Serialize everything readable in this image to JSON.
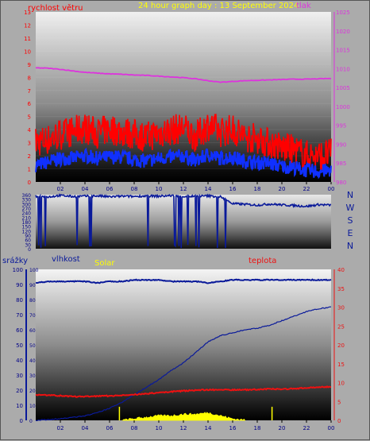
{
  "charts_top_title": "24 hour graph day : 13 September 2024",
  "colors": {
    "wind": "#ff0000",
    "gust_base": "#1030ff",
    "pressure": "#dd33dd",
    "direction": "#0a1a9a",
    "humidity": "#0a1a9a",
    "temperature": "#ee1111",
    "rain": "#0a1a9a",
    "solar": "#ffff00",
    "title": "#ffff00"
  },
  "chart_data": [
    {
      "type": "line",
      "title": "24 hour graph day : 13 September 2024",
      "ylabel_left": "rychlost větru",
      "ylabel_right": "tlak",
      "ylim_left": [
        0,
        13
      ],
      "ylim_right": [
        980,
        1025
      ],
      "yticks_left": [
        "0",
        "1",
        "2",
        "3",
        "4",
        "5",
        "6",
        "7",
        "8",
        "9",
        "10",
        "11",
        "12",
        "13"
      ],
      "yticks_right": [
        "980",
        "985",
        "990",
        "995",
        "1000",
        "1005",
        "1010",
        "1015",
        "1020",
        "1025"
      ],
      "xticks": [
        "02",
        "04",
        "06",
        "08",
        "10",
        "12",
        "14",
        "16",
        "18",
        "20",
        "22",
        "00"
      ],
      "series": [
        {
          "name": "rychlost větru",
          "x": [
            0,
            1,
            2,
            3,
            4,
            5,
            6,
            7,
            8,
            9,
            10,
            11,
            12,
            13,
            14,
            15,
            16,
            17,
            18,
            19,
            20,
            21,
            22,
            23,
            24
          ],
          "values": [
            2.8,
            3.0,
            3.4,
            3.6,
            3.9,
            3.5,
            3.8,
            3.6,
            3.4,
            3.2,
            3.5,
            3.7,
            3.9,
            3.2,
            4.1,
            3.6,
            3.8,
            3.2,
            3.1,
            2.7,
            2.4,
            2.2,
            1.8,
            1.7,
            1.9
          ]
        },
        {
          "name": "",
          "x": [
            0,
            1,
            2,
            3,
            4,
            5,
            6,
            7,
            8,
            9,
            10,
            11,
            12,
            13,
            14,
            15,
            16,
            17,
            18,
            19,
            20,
            21,
            22,
            23,
            24
          ],
          "values": [
            1.3,
            1.5,
            1.8,
            1.8,
            2.0,
            1.8,
            1.9,
            1.9,
            1.7,
            1.6,
            1.8,
            1.9,
            2.0,
            1.6,
            2.1,
            1.8,
            1.9,
            1.6,
            1.5,
            1.4,
            1.2,
            1.1,
            0.9,
            0.8,
            0.9
          ]
        },
        {
          "name": "tlak",
          "x": [
            0,
            1,
            2,
            3,
            4,
            5,
            6,
            7,
            8,
            9,
            10,
            11,
            12,
            13,
            14,
            15,
            16,
            17,
            18,
            19,
            20,
            21,
            22,
            23,
            24
          ],
          "values": [
            1010.2,
            1010.1,
            1009.8,
            1009.4,
            1009.0,
            1008.8,
            1008.6,
            1008.5,
            1008.3,
            1008.2,
            1008.0,
            1007.8,
            1007.6,
            1007.3,
            1006.8,
            1006.4,
            1006.6,
            1006.8,
            1006.9,
            1007.0,
            1007.1,
            1007.2,
            1007.2,
            1007.3,
            1007.4
          ]
        }
      ]
    },
    {
      "type": "line",
      "ylim": [
        0,
        360
      ],
      "yticks": [
        "0",
        "90",
        "180",
        "270",
        "360"
      ],
      "yticks_shown": [
        "0",
        "30",
        "60",
        "90",
        "120",
        "150",
        "180",
        "210",
        "240",
        "270",
        "300",
        "330"
      ],
      "compass_labels": [
        "N",
        "W",
        "S",
        "E",
        "N"
      ],
      "series": [
        {
          "name": "",
          "x": [
            0,
            1,
            2,
            3,
            4,
            5,
            6,
            7,
            8,
            9,
            10,
            11,
            12,
            13,
            14,
            15,
            16,
            17,
            18,
            19,
            20,
            21,
            22,
            23,
            24
          ],
          "values": [
            350,
            345,
            355,
            348,
            350,
            352,
            346,
            350,
            348,
            352,
            350,
            354,
            348,
            350,
            352,
            346,
            300,
            296,
            290,
            298,
            292,
            288,
            282,
            294,
            290
          ]
        }
      ]
    },
    {
      "type": "line",
      "ylabel_left": "srážky",
      "ylabel_left2": "vlhkost",
      "label_solar": "Solar",
      "ylabel_right": "teplota",
      "ylim_left": [
        0,
        100
      ],
      "ylim_right": [
        0,
        40
      ],
      "yticks_left": [
        "0",
        "10",
        "20",
        "30",
        "40",
        "50",
        "60",
        "70",
        "80",
        "90",
        "100"
      ],
      "yticks_right": [
        "0",
        "5",
        "10",
        "15",
        "20",
        "25",
        "30",
        "35",
        "40"
      ],
      "xticks": [
        "02",
        "04",
        "06",
        "08",
        "10",
        "12",
        "14",
        "16",
        "18",
        "20",
        "22",
        "00"
      ],
      "series": [
        {
          "name": "vlhkost",
          "x": [
            0,
            1,
            2,
            3,
            4,
            5,
            6,
            7,
            8,
            9,
            10,
            11,
            12,
            13,
            14,
            15,
            16,
            17,
            18,
            19,
            20,
            21,
            22,
            23,
            24
          ],
          "values": [
            91,
            92,
            92,
            92,
            92,
            91,
            92,
            92,
            93,
            93,
            93,
            92,
            92,
            92,
            91,
            92,
            93,
            93,
            93,
            93,
            93,
            93,
            93,
            93,
            93
          ]
        },
        {
          "name": "teplota",
          "x": [
            0,
            1,
            2,
            3,
            4,
            5,
            6,
            7,
            8,
            9,
            10,
            11,
            12,
            13,
            14,
            15,
            16,
            17,
            18,
            19,
            20,
            21,
            22,
            23,
            24
          ],
          "values": [
            6.8,
            6.7,
            6.5,
            6.3,
            6.3,
            6.4,
            6.5,
            6.6,
            6.8,
            7.1,
            7.3,
            7.6,
            7.8,
            8.0,
            8.1,
            8.1,
            8.1,
            8.1,
            8.2,
            8.3,
            8.3,
            8.4,
            8.6,
            8.8,
            8.9
          ]
        },
        {
          "name": "srážky",
          "x": [
            0,
            1,
            2,
            3,
            4,
            5,
            6,
            7,
            8,
            9,
            10,
            11,
            12,
            13,
            14,
            15,
            16,
            17,
            18,
            19,
            20,
            21,
            22,
            23,
            24
          ],
          "values": [
            0,
            0.5,
            1,
            2,
            3,
            5,
            8,
            12,
            17,
            22,
            27,
            33,
            38,
            45,
            52,
            56,
            58,
            60,
            61,
            63,
            66,
            69,
            72,
            74,
            75
          ]
        },
        {
          "name": "Solar",
          "x": [
            7,
            8,
            9,
            10,
            11,
            12,
            13,
            14,
            15,
            16,
            17
          ],
          "values": [
            0,
            1,
            2,
            3,
            3,
            4,
            4,
            5,
            3,
            1,
            0
          ]
        }
      ]
    }
  ]
}
